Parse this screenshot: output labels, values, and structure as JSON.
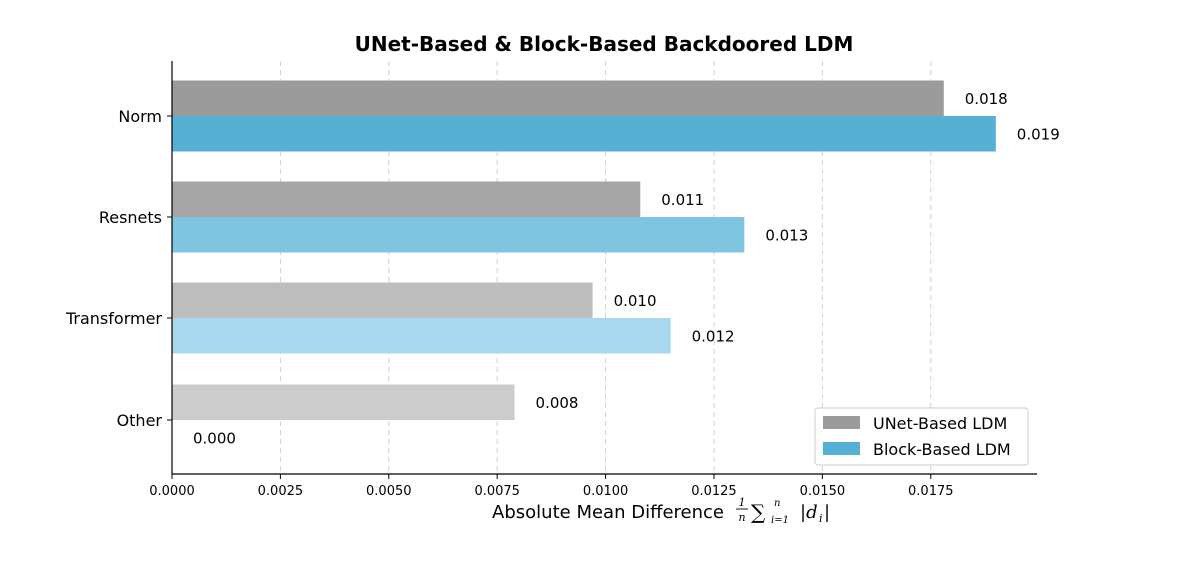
{
  "chart_data": {
    "type": "bar",
    "orientation": "horizontal",
    "title": "UNet-Based & Block-Based Backdoored LDM",
    "xlabel": "Absolute Mean Difference",
    "xlabel_formula": {
      "frac_num": "1",
      "frac_den": "n",
      "sum_top": "n",
      "sum_bottom": "i=1",
      "term": "|d",
      "term_sub": "i",
      "term_close": "|"
    },
    "ylabel": "",
    "categories": [
      "Norm",
      "Resnets",
      "Transformer",
      "Other"
    ],
    "series": [
      {
        "name": "UNet-Based LDM",
        "values": [
          0.0178,
          0.0108,
          0.0097,
          0.0079
        ],
        "labels": [
          "0.018",
          "0.011",
          "0.010",
          "0.008"
        ],
        "colors": [
          "#9b9b9b",
          "#a6a6a6",
          "#bdbdbd",
          "#cccccc"
        ],
        "legend_color": "#9b9b9b"
      },
      {
        "name": "Block-Based LDM",
        "values": [
          0.019,
          0.0132,
          0.0115,
          0.0
        ],
        "labels": [
          "0.019",
          "0.013",
          "0.012",
          "0.000"
        ],
        "colors": [
          "#56b0d4",
          "#7fc4e0",
          "#a8d8ee",
          "#d3ecf7"
        ],
        "legend_color": "#56b0d4"
      }
    ],
    "xlim": [
      0,
      0.01995
    ],
    "xticks": [
      {
        "value": 0.0,
        "label": "0.0000"
      },
      {
        "value": 0.0025,
        "label": "0.0025"
      },
      {
        "value": 0.005,
        "label": "0.0050"
      },
      {
        "value": 0.0075,
        "label": "0.0075"
      },
      {
        "value": 0.01,
        "label": "0.0100"
      },
      {
        "value": 0.0125,
        "label": "0.0125"
      },
      {
        "value": 0.015,
        "label": "0.0150"
      },
      {
        "value": 0.0175,
        "label": "0.0175"
      }
    ],
    "grid": "x-dashed",
    "legend_position": "lower-right"
  }
}
